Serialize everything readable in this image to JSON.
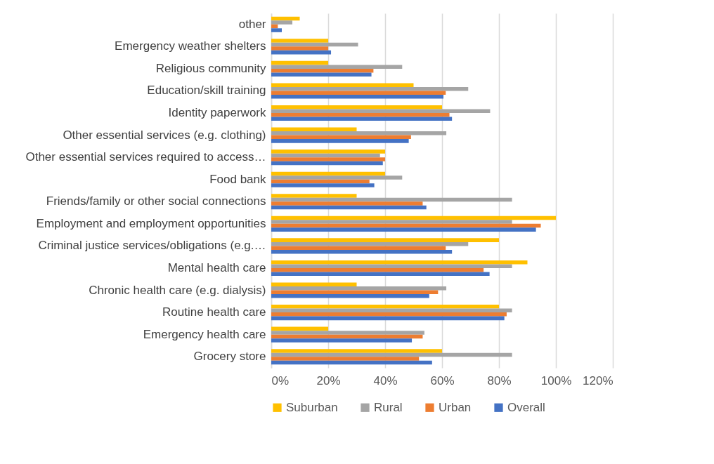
{
  "chart_data": {
    "type": "bar",
    "orientation": "horizontal",
    "categories": [
      "other",
      "Emergency weather shelters",
      "Religious community",
      "Education/skill training",
      "Identity paperwork",
      "Other essential services (e.g. clothing)",
      "Other essential services required to access…",
      "Food bank",
      "Friends/family or other social connections",
      "Employment and employment opportunities",
      "Criminal justice services/obligations (e.g.…",
      "Mental health care",
      "Chronic health care (e.g. dialysis)",
      "Routine health care",
      "Emergency health care",
      "Grocery store"
    ],
    "series": [
      {
        "name": "Suburban",
        "color": "#ffc000",
        "values": [
          10,
          20,
          20,
          50,
          60,
          30,
          40,
          40,
          30,
          100,
          80,
          90,
          30,
          80,
          20,
          60
        ]
      },
      {
        "name": "Rural",
        "color": "#a5a5a5",
        "values": [
          7.4,
          30.5,
          46,
          69.2,
          76.9,
          61.5,
          38.2,
          46,
          84.6,
          84.6,
          69.2,
          84.6,
          61.5,
          84.6,
          53.8,
          84.6
        ]
      },
      {
        "name": "Urban",
        "color": "#ed7d31",
        "values": [
          2.3,
          20,
          35.9,
          61.3,
          62.6,
          49.1,
          40,
          34.5,
          53.2,
          94.7,
          61.3,
          74.6,
          58.6,
          82.7,
          53.2,
          51.9
        ]
      },
      {
        "name": "Overall",
        "color": "#4472c4",
        "values": [
          3.7,
          21,
          35.2,
          60.5,
          63.5,
          48.3,
          39.2,
          36.2,
          54.5,
          93,
          63.5,
          76.7,
          55.5,
          81.9,
          49.4,
          56.5
        ]
      }
    ],
    "xlim": [
      0,
      120
    ],
    "xticks": [
      {
        "value": 0,
        "label": "0%"
      },
      {
        "value": 20,
        "label": "20%"
      },
      {
        "value": 40,
        "label": "40%"
      },
      {
        "value": 60,
        "label": "60%"
      },
      {
        "value": 80,
        "label": "80%"
      },
      {
        "value": 100,
        "label": "100%"
      },
      {
        "value": 120,
        "label": "120%"
      }
    ],
    "grid": "x",
    "legend": "bottom"
  }
}
